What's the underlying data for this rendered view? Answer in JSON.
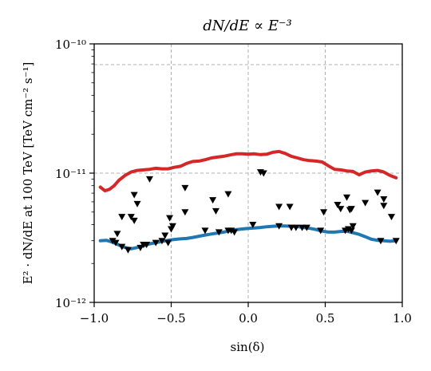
{
  "chart_data": {
    "type": "line",
    "title": "dN/dE ∝ E⁻³",
    "xlabel": "sin(δ)",
    "ylabel": "E² · dN/dE at 100 TeV  [TeV cm⁻² s⁻¹]",
    "xlim": [
      -1.0,
      1.0
    ],
    "ylim": [
      1e-12,
      1e-10
    ],
    "y_scale": "log",
    "grid": true,
    "x_ticks": [
      -1.0,
      -0.5,
      0.0,
      0.5,
      1.0
    ],
    "x_tick_labels": [
      "−1.0",
      "−0.5",
      "0.0",
      "0.5",
      "1.0"
    ],
    "y_ticks": [
      1e-12,
      1e-11,
      1e-10
    ],
    "y_tick_labels": [
      "10⁻¹²",
      "10⁻¹¹",
      "10⁻¹⁰"
    ],
    "series": [
      {
        "color": "#d62728",
        "style": "line",
        "x": [
          -0.96,
          -0.93,
          -0.9,
          -0.87,
          -0.84,
          -0.8,
          -0.76,
          -0.72,
          -0.68,
          -0.64,
          -0.6,
          -0.56,
          -0.52,
          -0.48,
          -0.44,
          -0.4,
          -0.36,
          -0.32,
          -0.28,
          -0.24,
          -0.2,
          -0.16,
          -0.12,
          -0.08,
          -0.04,
          0.0,
          0.04,
          0.08,
          0.12,
          0.16,
          0.2,
          0.24,
          0.28,
          0.32,
          0.36,
          0.4,
          0.44,
          0.48,
          0.52,
          0.56,
          0.6,
          0.64,
          0.68,
          0.72,
          0.76,
          0.8,
          0.84,
          0.88,
          0.92,
          0.96
        ],
        "y": [
          7.8e-12,
          7.3e-12,
          7.5e-12,
          8e-12,
          8.8e-12,
          9.6e-12,
          1.02e-11,
          1.05e-11,
          1.06e-11,
          1.07e-11,
          1.09e-11,
          1.08e-11,
          1.08e-11,
          1.11e-11,
          1.13e-11,
          1.19e-11,
          1.23e-11,
          1.24e-11,
          1.27e-11,
          1.31e-11,
          1.33e-11,
          1.35e-11,
          1.38e-11,
          1.41e-11,
          1.41e-11,
          1.4e-11,
          1.41e-11,
          1.39e-11,
          1.4e-11,
          1.45e-11,
          1.47e-11,
          1.42e-11,
          1.35e-11,
          1.31e-11,
          1.27e-11,
          1.25e-11,
          1.24e-11,
          1.22e-11,
          1.14e-11,
          1.07e-11,
          1.06e-11,
          1.04e-11,
          1.03e-11,
          9.7e-12,
          1.02e-11,
          1.04e-11,
          1.05e-11,
          1.02e-11,
          9.6e-12,
          9.2e-12
        ]
      },
      {
        "color": "#1f77b4",
        "style": "line",
        "x": [
          -0.96,
          -0.92,
          -0.88,
          -0.84,
          -0.8,
          -0.76,
          -0.72,
          -0.68,
          -0.64,
          -0.6,
          -0.56,
          -0.52,
          -0.48,
          -0.44,
          -0.4,
          -0.36,
          -0.32,
          -0.28,
          -0.24,
          -0.2,
          -0.16,
          -0.12,
          -0.08,
          -0.04,
          0.0,
          0.04,
          0.08,
          0.12,
          0.16,
          0.2,
          0.24,
          0.28,
          0.32,
          0.36,
          0.4,
          0.44,
          0.48,
          0.52,
          0.56,
          0.6,
          0.64,
          0.68,
          0.72,
          0.76,
          0.8,
          0.84,
          0.88,
          0.92,
          0.96
        ],
        "y": [
          3e-12,
          3.02e-12,
          2.92e-12,
          2.78e-12,
          2.66e-12,
          2.6e-12,
          2.66e-12,
          2.74e-12,
          2.84e-12,
          2.9e-12,
          2.96e-12,
          3.02e-12,
          3.07e-12,
          3.1e-12,
          3.12e-12,
          3.18e-12,
          3.25e-12,
          3.32e-12,
          3.38e-12,
          3.44e-12,
          3.5e-12,
          3.58e-12,
          3.65e-12,
          3.7e-12,
          3.74e-12,
          3.76e-12,
          3.8e-12,
          3.85e-12,
          3.88e-12,
          3.9e-12,
          3.9e-12,
          3.88e-12,
          3.86e-12,
          3.8e-12,
          3.74e-12,
          3.66e-12,
          3.56e-12,
          3.5e-12,
          3.5e-12,
          3.54e-12,
          3.56e-12,
          3.46e-12,
          3.36e-12,
          3.22e-12,
          3.08e-12,
          3.02e-12,
          3e-12,
          2.97e-12,
          3e-12
        ]
      },
      {
        "color": "#000000",
        "style": "triangle-down-markers",
        "points": [
          [
            -0.88,
            3e-12
          ],
          [
            -0.86,
            2.9e-12
          ],
          [
            -0.85,
            3.4e-12
          ],
          [
            -0.82,
            2.7e-12
          ],
          [
            -0.82,
            4.6e-12
          ],
          [
            -0.78,
            2.55e-12
          ],
          [
            -0.76,
            4.6e-12
          ],
          [
            -0.74,
            6.8e-12
          ],
          [
            -0.74,
            4.3e-12
          ],
          [
            -0.72,
            5.8e-12
          ],
          [
            -0.7,
            2.65e-12
          ],
          [
            -0.68,
            2.8e-12
          ],
          [
            -0.66,
            2.8e-12
          ],
          [
            -0.64,
            9e-12
          ],
          [
            -0.6,
            2.9e-12
          ],
          [
            -0.56,
            3e-12
          ],
          [
            -0.54,
            3.3e-12
          ],
          [
            -0.52,
            2.9e-12
          ],
          [
            -0.51,
            4.5e-12
          ],
          [
            -0.5,
            3.7e-12
          ],
          [
            -0.49,
            3.9e-12
          ],
          [
            -0.41,
            7.7e-12
          ],
          [
            -0.41,
            5e-12
          ],
          [
            -0.28,
            3.6e-12
          ],
          [
            -0.23,
            6.2e-12
          ],
          [
            -0.21,
            5.1e-12
          ],
          [
            -0.19,
            3.5e-12
          ],
          [
            -0.13,
            6.9e-12
          ],
          [
            -0.13,
            3.6e-12
          ],
          [
            -0.11,
            3.6e-12
          ],
          [
            -0.09,
            3.5e-12
          ],
          [
            0.03,
            4e-12
          ],
          [
            0.08,
            1.02e-11
          ],
          [
            0.1,
            1e-11
          ],
          [
            0.2,
            3.9e-12
          ],
          [
            0.2,
            5.5e-12
          ],
          [
            0.27,
            5.5e-12
          ],
          [
            0.28,
            3.8e-12
          ],
          [
            0.31,
            3.8e-12
          ],
          [
            0.35,
            3.8e-12
          ],
          [
            0.38,
            3.8e-12
          ],
          [
            0.47,
            3.6e-12
          ],
          [
            0.49,
            5e-12
          ],
          [
            0.58,
            5.7e-12
          ],
          [
            0.6,
            5.3e-12
          ],
          [
            0.63,
            3.6e-12
          ],
          [
            0.64,
            6.5e-12
          ],
          [
            0.65,
            3.7e-12
          ],
          [
            0.66,
            5.2e-12
          ],
          [
            0.67,
            5.3e-12
          ],
          [
            0.68,
            3.9e-12
          ],
          [
            0.67,
            3.6e-12
          ],
          [
            0.76,
            5.9e-12
          ],
          [
            0.84,
            7.1e-12
          ],
          [
            0.88,
            6.3e-12
          ],
          [
            0.88,
            5.6e-12
          ],
          [
            0.86,
            3e-12
          ],
          [
            0.93,
            4.6e-12
          ],
          [
            0.96,
            3e-12
          ]
        ]
      }
    ]
  }
}
